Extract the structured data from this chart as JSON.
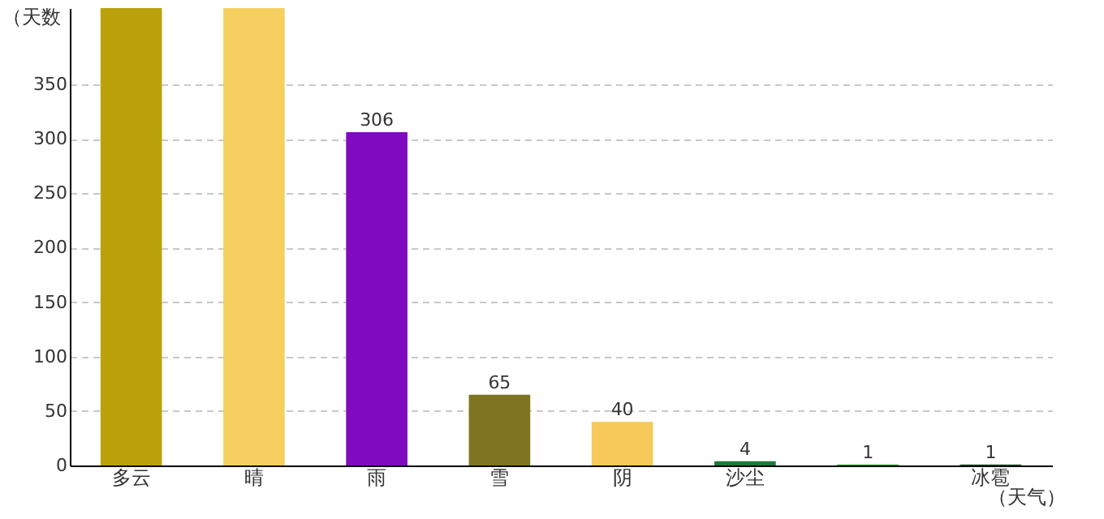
{
  "chart_data": {
    "type": "bar",
    "xlabel": "（天气）",
    "ylabel": "（天数",
    "categories": [
      "多云",
      "晴",
      "雨",
      "雪",
      "阴",
      "沙尘",
      null,
      "冰雹"
    ],
    "values": [
      420,
      420,
      306,
      65,
      40,
      4,
      1,
      1
    ],
    "value_labels": [
      null,
      null,
      "306",
      "65",
      "40",
      "4",
      "1",
      "1"
    ],
    "colors": [
      "#bba20a",
      "#f5d060",
      "#7f0abf",
      "#7f7520",
      "#f7c95a",
      "#1e7a3a",
      "#3aa83a",
      "#2a5a3a"
    ],
    "ylim": [
      0,
      420
    ],
    "yticks": [
      0,
      50,
      100,
      150,
      200,
      250,
      300,
      350
    ],
    "grid": "y"
  }
}
